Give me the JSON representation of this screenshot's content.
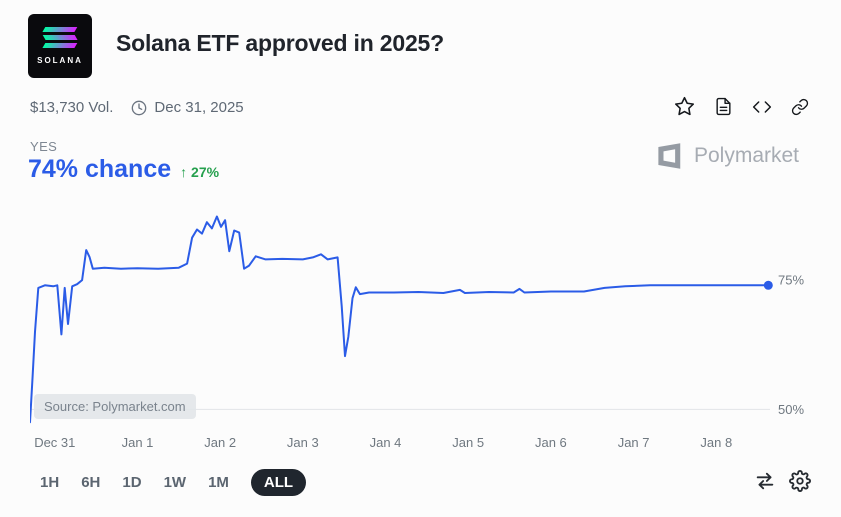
{
  "header": {
    "logo_text": "SOLANA",
    "title": "Solana ETF approved in 2025?"
  },
  "stats": {
    "volume": "$13,730 Vol.",
    "date": "Dec 31, 2025"
  },
  "toolbar": {
    "icons": [
      "star",
      "article",
      "embed-code",
      "copy-link"
    ]
  },
  "outcome": {
    "label": "YES",
    "chance": "74% chance",
    "change": "↑ 27%"
  },
  "watermark": {
    "text": "Polymarket"
  },
  "chart_data": {
    "type": "line",
    "title": "Solana ETF approved in 2025?",
    "x_domain": [
      -0.3,
      8.65
    ],
    "ylim": [
      46,
      90.5
    ],
    "x_ticks": [
      {
        "pos": 0,
        "label": "Dec 31"
      },
      {
        "pos": 1,
        "label": "Jan 1"
      },
      {
        "pos": 2,
        "label": "Jan 2"
      },
      {
        "pos": 3,
        "label": "Jan 3"
      },
      {
        "pos": 4,
        "label": "Jan 4"
      },
      {
        "pos": 5,
        "label": "Jan 5"
      },
      {
        "pos": 6,
        "label": "Jan 6"
      },
      {
        "pos": 7,
        "label": "Jan 7"
      },
      {
        "pos": 8,
        "label": "Jan 8"
      }
    ],
    "y_ticks": [
      {
        "value": 75,
        "label": "75%",
        "gridline": false
      },
      {
        "value": 50,
        "label": "50%",
        "gridline": true
      }
    ],
    "series": [
      {
        "name": "YES",
        "color": "#2b5ce7",
        "points": [
          [
            -0.3,
            47.5
          ],
          [
            -0.27,
            56
          ],
          [
            -0.24,
            65
          ],
          [
            -0.2,
            73.5
          ],
          [
            -0.12,
            74
          ],
          [
            -0.02,
            73.8
          ],
          [
            0.03,
            74
          ],
          [
            0.08,
            64.5
          ],
          [
            0.12,
            73.5
          ],
          [
            0.16,
            66.5
          ],
          [
            0.21,
            73.8
          ],
          [
            0.27,
            74.2
          ],
          [
            0.33,
            75
          ],
          [
            0.38,
            80.8
          ],
          [
            0.42,
            79.5
          ],
          [
            0.46,
            77.2
          ],
          [
            0.6,
            77.4
          ],
          [
            0.8,
            77.2
          ],
          [
            1.0,
            77.3
          ],
          [
            1.25,
            77.2
          ],
          [
            1.5,
            77.4
          ],
          [
            1.6,
            78.2
          ],
          [
            1.66,
            83.2
          ],
          [
            1.72,
            84.8
          ],
          [
            1.78,
            84.0
          ],
          [
            1.84,
            86.2
          ],
          [
            1.9,
            85.0
          ],
          [
            1.96,
            87.3
          ],
          [
            2.01,
            85.3
          ],
          [
            2.06,
            86.6
          ],
          [
            2.11,
            80.6
          ],
          [
            2.17,
            84.6
          ],
          [
            2.23,
            84.2
          ],
          [
            2.29,
            77.2
          ],
          [
            2.35,
            77.8
          ],
          [
            2.43,
            79.6
          ],
          [
            2.55,
            79.0
          ],
          [
            2.75,
            79.1
          ],
          [
            3.0,
            79.0
          ],
          [
            3.12,
            79.4
          ],
          [
            3.22,
            80.0
          ],
          [
            3.3,
            79.0
          ],
          [
            3.42,
            79.4
          ],
          [
            3.47,
            70.0
          ],
          [
            3.51,
            60.3
          ],
          [
            3.55,
            64.0
          ],
          [
            3.6,
            71.5
          ],
          [
            3.64,
            73.6
          ],
          [
            3.69,
            72.3
          ],
          [
            3.8,
            72.6
          ],
          [
            4.1,
            72.6
          ],
          [
            4.4,
            72.7
          ],
          [
            4.7,
            72.5
          ],
          [
            4.9,
            73.1
          ],
          [
            4.96,
            72.5
          ],
          [
            5.25,
            72.7
          ],
          [
            5.55,
            72.6
          ],
          [
            5.62,
            73.3
          ],
          [
            5.68,
            72.6
          ],
          [
            6.0,
            72.8
          ],
          [
            6.4,
            72.8
          ],
          [
            6.65,
            73.5
          ],
          [
            6.9,
            73.8
          ],
          [
            7.2,
            74.0
          ],
          [
            7.6,
            74.0
          ],
          [
            8.0,
            74.0
          ],
          [
            8.63,
            74.0
          ]
        ]
      }
    ],
    "end_value": 74,
    "source": "Source: Polymarket.com",
    "legend": false,
    "grid": "horizontal-50-only"
  },
  "timeframe": {
    "options": [
      "1H",
      "6H",
      "1D",
      "1W",
      "1M",
      "ALL"
    ],
    "selected": "ALL"
  },
  "footer_tools": [
    "compare",
    "settings"
  ],
  "colors": {
    "accent_blue": "#2b5ce7",
    "positive_green": "#26a04e",
    "pill_selected_bg": "#20262e",
    "background": "#fcfcfc",
    "muted_text": "#6f7880",
    "watermark_gray": "#a7acb3",
    "solana_gradient": [
      "#00ffa3",
      "#dc1fff"
    ]
  }
}
